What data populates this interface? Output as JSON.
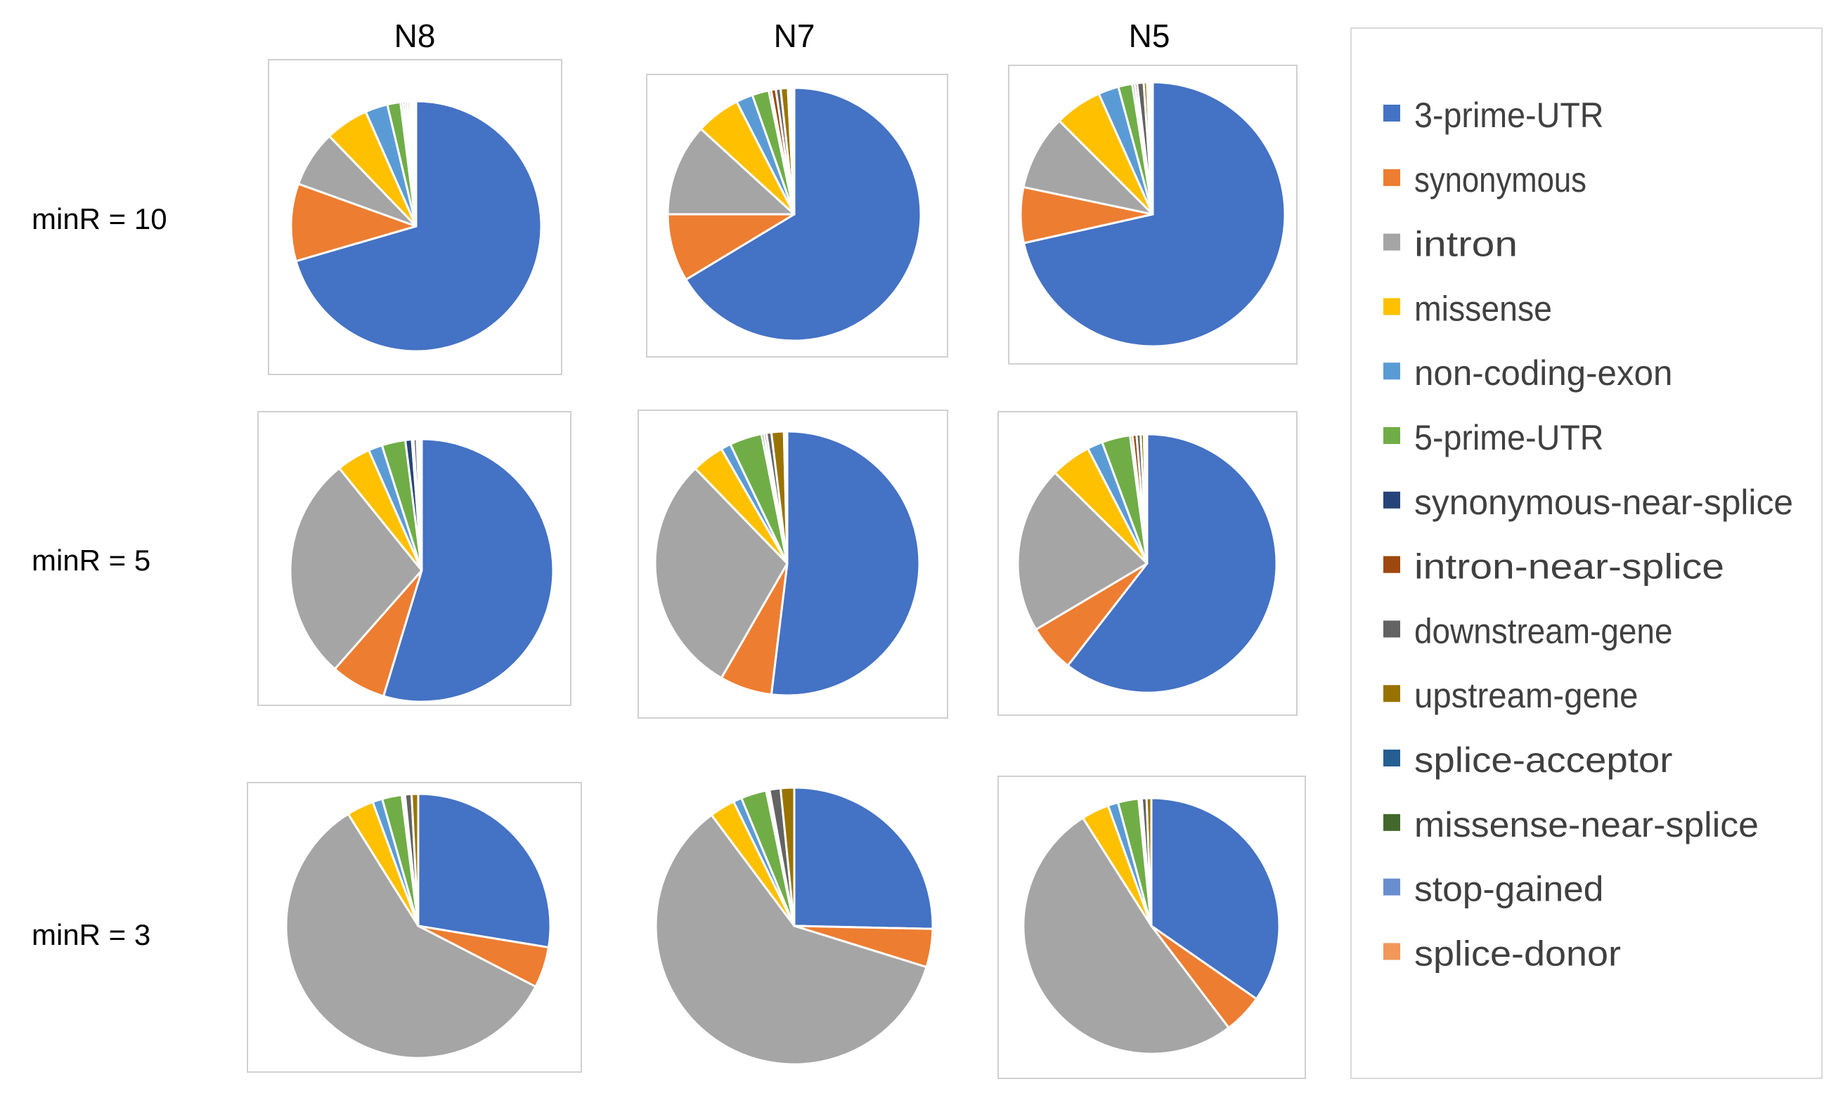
{
  "column_headers": [
    "N8",
    "N7",
    "N5"
  ],
  "row_labels": [
    "minR = 10",
    "minR = 5",
    "minR = 3"
  ],
  "legend": [
    {
      "label": "3-prime-UTR",
      "color": "#4472C4"
    },
    {
      "label": "synonymous",
      "color": "#ED7D31"
    },
    {
      "label": "intron",
      "color": "#A5A5A5"
    },
    {
      "label": "missense",
      "color": "#FFC000"
    },
    {
      "label": "non-coding-exon",
      "color": "#5B9BD5"
    },
    {
      "label": "5-prime-UTR",
      "color": "#70AD47"
    },
    {
      "label": "synonymous-near-splice",
      "color": "#264478"
    },
    {
      "label": "intron-near-splice",
      "color": "#9E480E"
    },
    {
      "label": "downstream-gene",
      "color": "#636363"
    },
    {
      "label": "upstream-gene",
      "color": "#997300"
    },
    {
      "label": "splice-acceptor",
      "color": "#255E91"
    },
    {
      "label": "missense-near-splice",
      "color": "#43682B"
    },
    {
      "label": "stop-gained",
      "color": "#698ED0"
    },
    {
      "label": "splice-donor",
      "color": "#F1975A"
    }
  ],
  "chart_data": [
    {
      "type": "pie",
      "sample": "N8",
      "condition": "minR = 10",
      "categories": [
        "3-prime-UTR",
        "synonymous",
        "intron",
        "missense",
        "non-coding-exon",
        "5-prime-UTR",
        "synonymous-near-splice",
        "intron-near-splice",
        "downstream-gene",
        "upstream-gene",
        "splice-acceptor",
        "missense-near-splice",
        "stop-gained",
        "splice-donor"
      ],
      "values": [
        70.5,
        10.0,
        7.3,
        5.6,
        2.9,
        1.7,
        0.3,
        0.3,
        0.3,
        0.3,
        0.2,
        0.2,
        0.2,
        0.2
      ]
    },
    {
      "type": "pie",
      "sample": "N7",
      "condition": "minR = 10",
      "categories": [
        "3-prime-UTR",
        "synonymous",
        "intron",
        "missense",
        "non-coding-exon",
        "5-prime-UTR",
        "synonymous-near-splice",
        "intron-near-splice",
        "downstream-gene",
        "upstream-gene",
        "splice-acceptor",
        "missense-near-splice",
        "stop-gained",
        "splice-donor"
      ],
      "values": [
        65.3,
        8.5,
        11.6,
        5.6,
        2.1,
        2.1,
        0.3,
        0.6,
        0.6,
        0.9,
        0.2,
        0.2,
        0.2,
        0.2
      ]
    },
    {
      "type": "pie",
      "sample": "N5",
      "condition": "minR = 10",
      "categories": [
        "3-prime-UTR",
        "synonymous",
        "intron",
        "missense",
        "non-coding-exon",
        "5-prime-UTR",
        "synonymous-near-splice",
        "intron-near-splice",
        "downstream-gene",
        "upstream-gene",
        "splice-acceptor",
        "missense-near-splice",
        "stop-gained",
        "splice-donor"
      ],
      "values": [
        71.5,
        6.8,
        9.2,
        5.8,
        2.5,
        1.7,
        0.3,
        0.3,
        0.8,
        0.4,
        0.1,
        0.2,
        0.2,
        0.2
      ]
    },
    {
      "type": "pie",
      "sample": "N8",
      "condition": "minR = 5",
      "categories": [
        "3-prime-UTR",
        "synonymous",
        "intron",
        "missense",
        "non-coding-exon",
        "5-prime-UTR",
        "synonymous-near-splice",
        "intron-near-splice",
        "downstream-gene",
        "upstream-gene",
        "splice-acceptor",
        "missense-near-splice",
        "stop-gained",
        "splice-donor"
      ],
      "values": [
        54.7,
        6.8,
        27.7,
        4.2,
        1.7,
        2.9,
        0.8,
        0.2,
        0.4,
        0.2,
        0.1,
        0.1,
        0.1,
        0.1
      ]
    },
    {
      "type": "pie",
      "sample": "N7",
      "condition": "minR = 5",
      "categories": [
        "3-prime-UTR",
        "synonymous",
        "intron",
        "missense",
        "non-coding-exon",
        "5-prime-UTR",
        "synonymous-near-splice",
        "intron-near-splice",
        "downstream-gene",
        "upstream-gene",
        "splice-acceptor",
        "missense-near-splice",
        "stop-gained",
        "splice-donor"
      ],
      "values": [
        51.3,
        6.3,
        29.1,
        3.9,
        1.2,
        3.9,
        0.3,
        0.3,
        0.6,
        1.5,
        0.1,
        0.1,
        0.1,
        0.1
      ]
    },
    {
      "type": "pie",
      "sample": "N5",
      "condition": "minR = 5",
      "categories": [
        "3-prime-UTR",
        "synonymous",
        "intron",
        "missense",
        "non-coding-exon",
        "5-prime-UTR",
        "synonymous-near-splice",
        "intron-near-splice",
        "downstream-gene",
        "upstream-gene",
        "splice-acceptor",
        "missense-near-splice",
        "stop-gained",
        "splice-donor"
      ],
      "values": [
        59.9,
        5.9,
        20.7,
        5.0,
        1.9,
        3.5,
        0.3,
        0.5,
        0.5,
        0.4,
        0.1,
        0.1,
        0.1,
        0.1
      ]
    },
    {
      "type": "pie",
      "sample": "N8",
      "condition": "minR = 3",
      "categories": [
        "3-prime-UTR",
        "synonymous",
        "intron",
        "missense",
        "non-coding-exon",
        "5-prime-UTR",
        "synonymous-near-splice",
        "intron-near-splice",
        "downstream-gene",
        "upstream-gene",
        "splice-acceptor",
        "missense-near-splice",
        "stop-gained",
        "splice-donor"
      ],
      "values": [
        27.6,
        5.0,
        58.5,
        3.3,
        1.2,
        2.4,
        0.2,
        0.2,
        0.8,
        0.8,
        0.0,
        0.0,
        0.0,
        0.0
      ]
    },
    {
      "type": "pie",
      "sample": "N7",
      "condition": "minR = 3",
      "categories": [
        "3-prime-UTR",
        "synonymous",
        "intron",
        "missense",
        "non-coding-exon",
        "5-prime-UTR",
        "synonymous-near-splice",
        "intron-near-splice",
        "downstream-gene",
        "upstream-gene",
        "splice-acceptor",
        "missense-near-splice",
        "stop-gained",
        "splice-donor"
      ],
      "values": [
        25.6,
        4.5,
        60.6,
        3.0,
        1.0,
        3.0,
        0.2,
        0.2,
        1.3,
        1.6,
        0.0,
        0.0,
        0.0,
        0.0
      ]
    },
    {
      "type": "pie",
      "sample": "N5",
      "condition": "minR = 3",
      "categories": [
        "3-prime-UTR",
        "synonymous",
        "intron",
        "missense",
        "non-coding-exon",
        "5-prime-UTR",
        "synonymous-near-splice",
        "intron-near-splice",
        "downstream-gene",
        "upstream-gene",
        "splice-acceptor",
        "missense-near-splice",
        "stop-gained",
        "splice-donor"
      ],
      "values": [
        34.7,
        5.0,
        51.4,
        3.5,
        1.3,
        2.6,
        0.2,
        0.2,
        0.6,
        0.6,
        0.0,
        0.0,
        0.0,
        0.0
      ]
    }
  ]
}
